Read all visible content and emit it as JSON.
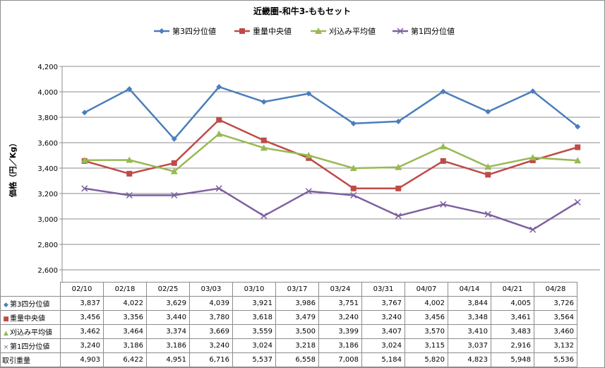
{
  "chart_data": {
    "type": "line",
    "title": "近畿圏-和牛3-ももセット",
    "ylabel": "価格（円／Kg）",
    "ylim": [
      2600,
      4200
    ],
    "yticks": [
      2600,
      2800,
      3000,
      3200,
      3400,
      3600,
      3800,
      4000,
      4200
    ],
    "ytick_labels": [
      "2,600",
      "2,800",
      "3,000",
      "3,200",
      "3,400",
      "3,600",
      "3,800",
      "4,000",
      "4,200"
    ],
    "categories": [
      "02/10",
      "02/18",
      "02/25",
      "03/03",
      "03/10",
      "03/17",
      "03/24",
      "03/31",
      "04/07",
      "04/14",
      "04/21",
      "04/28"
    ],
    "grid": true,
    "legend_position": "top",
    "series": [
      {
        "name": "第3四分位値",
        "color": "#4a7ebb",
        "marker": "diamond",
        "values": [
          3837,
          4022,
          3629,
          4039,
          3921,
          3986,
          3751,
          3767,
          4002,
          3844,
          4005,
          3726
        ],
        "labels": [
          "3,837",
          "4,022",
          "3,629",
          "4,039",
          "3,921",
          "3,986",
          "3,751",
          "3,767",
          "4,002",
          "3,844",
          "4,005",
          "3,726"
        ]
      },
      {
        "name": "重量中央値",
        "color": "#be4b48",
        "marker": "square",
        "values": [
          3456,
          3356,
          3440,
          3780,
          3618,
          3479,
          3240,
          3240,
          3456,
          3348,
          3461,
          3564
        ],
        "labels": [
          "3,456",
          "3,356",
          "3,440",
          "3,780",
          "3,618",
          "3,479",
          "3,240",
          "3,240",
          "3,456",
          "3,348",
          "3,461",
          "3,564"
        ]
      },
      {
        "name": "刈込み平均値",
        "color": "#98b954",
        "marker": "triangle",
        "values": [
          3462,
          3464,
          3374,
          3669,
          3559,
          3500,
          3399,
          3407,
          3570,
          3410,
          3483,
          3460
        ],
        "labels": [
          "3,462",
          "3,464",
          "3,374",
          "3,669",
          "3,559",
          "3,500",
          "3,399",
          "3,407",
          "3,570",
          "3,410",
          "3,483",
          "3,460"
        ]
      },
      {
        "name": "第1四分位値",
        "color": "#7d60a0",
        "marker": "x",
        "values": [
          3240,
          3186,
          3186,
          3240,
          3024,
          3218,
          3186,
          3024,
          3115,
          3037,
          2916,
          3132
        ],
        "labels": [
          "3,240",
          "3,186",
          "3,186",
          "3,240",
          "3,024",
          "3,218",
          "3,186",
          "3,024",
          "3,115",
          "3,037",
          "2,916",
          "3,132"
        ]
      }
    ],
    "extra_rows": [
      {
        "name": "取引重量",
        "values": [
          4903,
          6422,
          4951,
          6716,
          5537,
          6558,
          7008,
          5184,
          5820,
          4823,
          5948,
          5536
        ],
        "labels": [
          "4,903",
          "6,422",
          "4,951",
          "6,716",
          "5,537",
          "6,558",
          "7,008",
          "5,184",
          "5,820",
          "4,823",
          "5,948",
          "5,536"
        ]
      }
    ]
  }
}
